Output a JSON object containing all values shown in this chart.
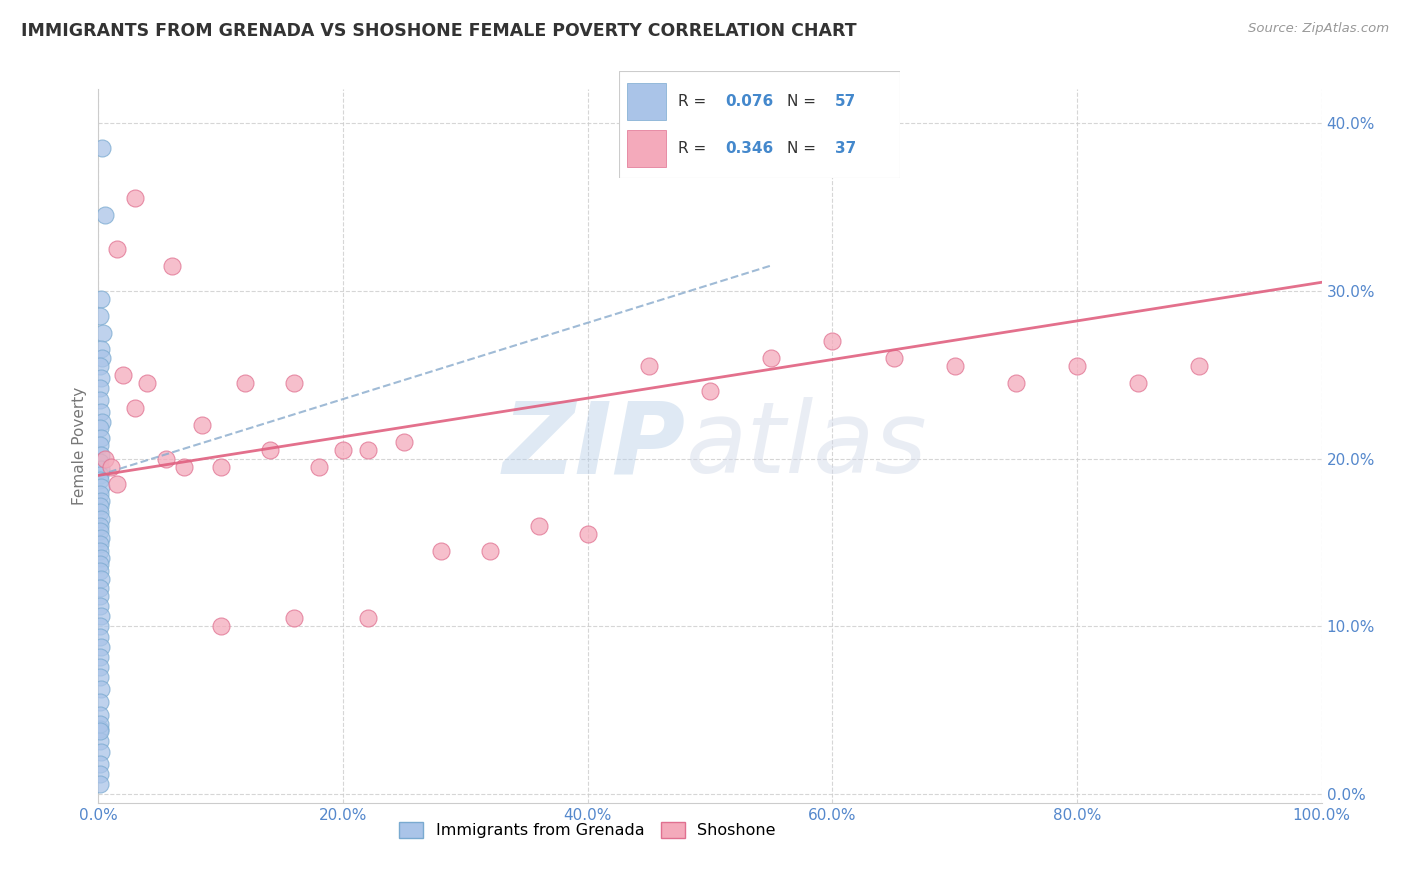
{
  "title": "IMMIGRANTS FROM GRENADA VS SHOSHONE FEMALE POVERTY CORRELATION CHART",
  "source": "Source: ZipAtlas.com",
  "ylabel": "Female Poverty",
  "legend_label1": "Immigrants from Grenada",
  "legend_label2": "Shoshone",
  "R1": 0.076,
  "N1": 57,
  "R2": 0.346,
  "N2": 37,
  "color1": "#aac4e8",
  "color1_line": "#7aaad0",
  "color2": "#f4aabb",
  "color2_line": "#e07090",
  "trend1_color": "#88aacc",
  "trend2_color": "#e06080",
  "watermark_zip": "ZIP",
  "watermark_atlas": "atlas",
  "xlim": [
    0.0,
    1.0
  ],
  "ylim": [
    -0.005,
    0.42
  ],
  "xticks": [
    0.0,
    0.2,
    0.4,
    0.6,
    0.8,
    1.0
  ],
  "yticks": [
    0.0,
    0.1,
    0.2,
    0.3,
    0.4
  ],
  "blue_x": [
    0.003,
    0.005,
    0.002,
    0.001,
    0.004,
    0.002,
    0.003,
    0.001,
    0.002,
    0.001,
    0.001,
    0.002,
    0.003,
    0.001,
    0.002,
    0.001,
    0.002,
    0.001,
    0.002,
    0.001,
    0.001,
    0.002,
    0.001,
    0.002,
    0.001,
    0.001,
    0.002,
    0.001,
    0.001,
    0.002,
    0.001,
    0.001,
    0.002,
    0.001,
    0.001,
    0.002,
    0.001,
    0.001,
    0.001,
    0.002,
    0.001,
    0.001,
    0.002,
    0.001,
    0.001,
    0.001,
    0.002,
    0.001,
    0.001,
    0.001,
    0.001,
    0.002,
    0.001,
    0.001,
    0.001,
    0.001,
    0.001
  ],
  "blue_y": [
    0.385,
    0.345,
    0.295,
    0.285,
    0.275,
    0.265,
    0.26,
    0.255,
    0.248,
    0.242,
    0.235,
    0.228,
    0.222,
    0.218,
    0.212,
    0.208,
    0.202,
    0.198,
    0.194,
    0.19,
    0.187,
    0.183,
    0.179,
    0.175,
    0.172,
    0.168,
    0.164,
    0.16,
    0.157,
    0.153,
    0.149,
    0.145,
    0.141,
    0.137,
    0.133,
    0.128,
    0.123,
    0.118,
    0.112,
    0.106,
    0.1,
    0.094,
    0.088,
    0.082,
    0.076,
    0.07,
    0.063,
    0.055,
    0.047,
    0.039,
    0.032,
    0.025,
    0.018,
    0.012,
    0.006,
    0.042,
    0.038
  ],
  "pink_x": [
    0.005,
    0.01,
    0.015,
    0.02,
    0.03,
    0.04,
    0.055,
    0.07,
    0.085,
    0.1,
    0.12,
    0.14,
    0.16,
    0.18,
    0.2,
    0.22,
    0.25,
    0.28,
    0.32,
    0.36,
    0.4,
    0.45,
    0.5,
    0.55,
    0.6,
    0.65,
    0.7,
    0.75,
    0.8,
    0.85,
    0.9,
    0.015,
    0.03,
    0.06,
    0.1,
    0.16,
    0.22
  ],
  "pink_y": [
    0.2,
    0.195,
    0.185,
    0.25,
    0.23,
    0.245,
    0.2,
    0.195,
    0.22,
    0.195,
    0.245,
    0.205,
    0.245,
    0.195,
    0.205,
    0.205,
    0.21,
    0.145,
    0.145,
    0.16,
    0.155,
    0.255,
    0.24,
    0.26,
    0.27,
    0.26,
    0.255,
    0.245,
    0.255,
    0.245,
    0.255,
    0.325,
    0.355,
    0.315,
    0.1,
    0.105,
    0.105
  ]
}
